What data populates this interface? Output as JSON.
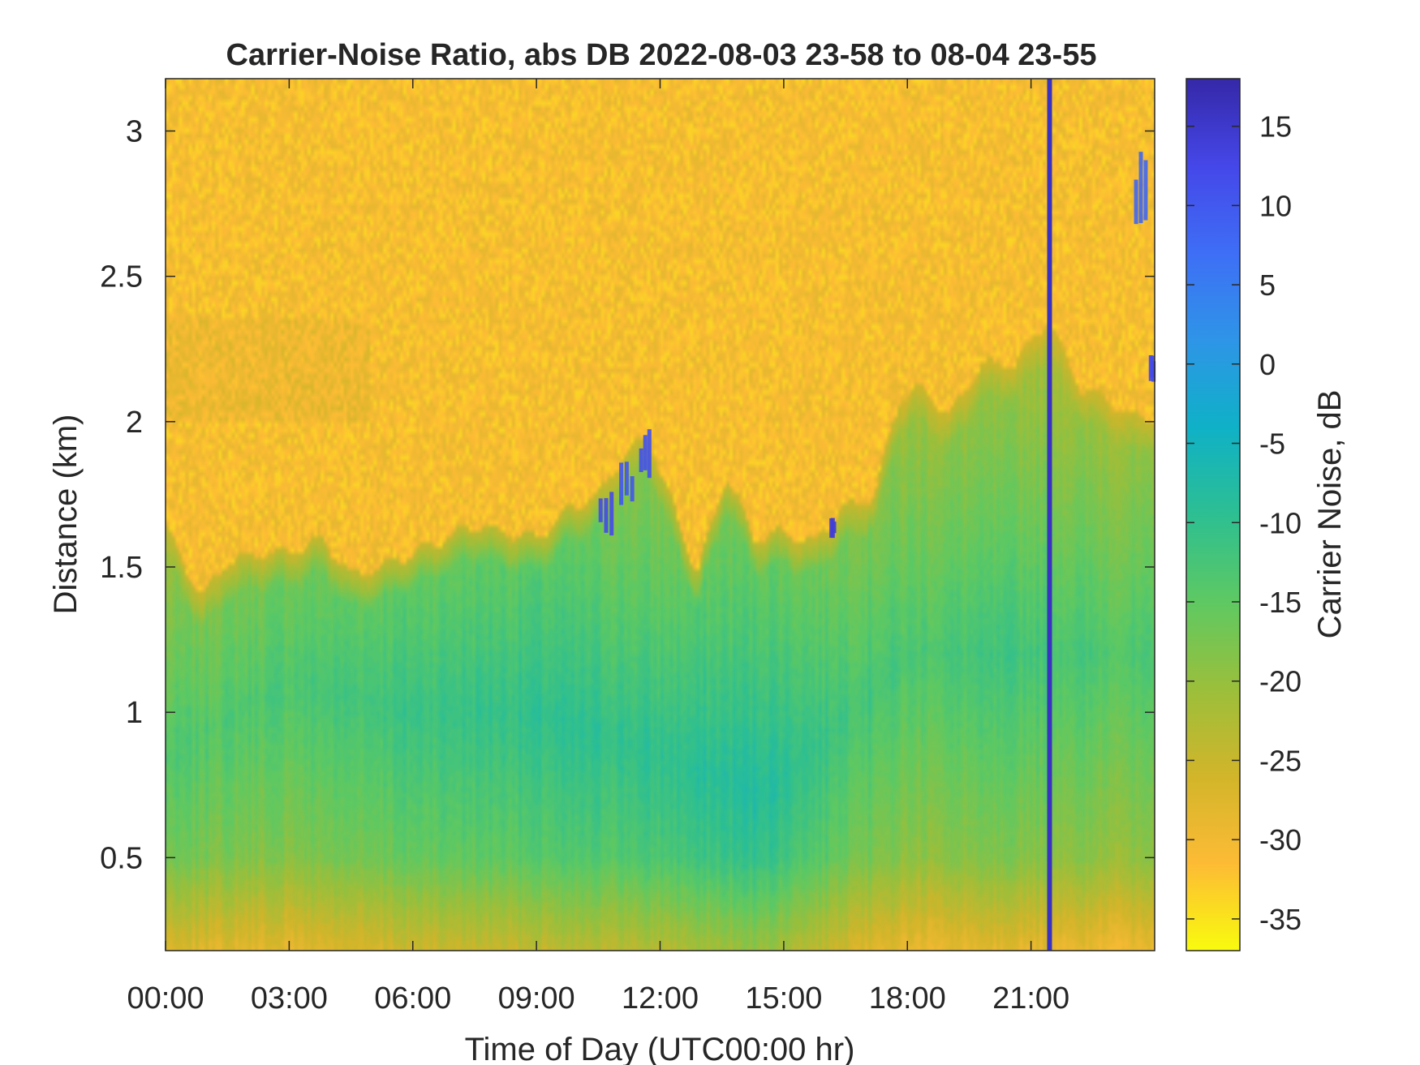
{
  "chart_data": {
    "type": "heatmap",
    "title": "Carrier-Noise Ratio, abs DB 2022-08-03 23-58 to 08-04 23-55",
    "xlabel": "Time of Day (UTC00:00 hr)",
    "ylabel": "Distance (km)",
    "colorbar_label": "Carrier Noise, dB",
    "xlim_hours": [
      0,
      24
    ],
    "ylim_km": [
      0.18,
      3.18
    ],
    "clim_db": [
      -37,
      18
    ],
    "colormap": "parula (reversed: yellow = low, dark blue = high)",
    "colormap_stops": [
      "#f9fb0e",
      "#fdbb35",
      "#d2b52a",
      "#9bbf3b",
      "#5ec962",
      "#2dbf92",
      "#0fb1c7",
      "#2e95e7",
      "#3e6ef6",
      "#4547e8",
      "#3528a8"
    ],
    "x_ticks": [
      {
        "value": 0,
        "label": "00:00"
      },
      {
        "value": 3,
        "label": "03:00"
      },
      {
        "value": 6,
        "label": "06:00"
      },
      {
        "value": 9,
        "label": "09:00"
      },
      {
        "value": 12,
        "label": "12:00"
      },
      {
        "value": 15,
        "label": "15:00"
      },
      {
        "value": 18,
        "label": "18:00"
      },
      {
        "value": 21,
        "label": "21:00"
      }
    ],
    "y_ticks": [
      {
        "value": 0.5,
        "label": "0.5"
      },
      {
        "value": 1,
        "label": "1"
      },
      {
        "value": 1.5,
        "label": "1.5"
      },
      {
        "value": 2,
        "label": "2"
      },
      {
        "value": 2.5,
        "label": "2.5"
      },
      {
        "value": 3,
        "label": "3"
      }
    ],
    "colorbar_ticks": [
      {
        "value": 15,
        "label": "15"
      },
      {
        "value": 10,
        "label": "10"
      },
      {
        "value": 5,
        "label": "5"
      },
      {
        "value": 0,
        "label": "0"
      },
      {
        "value": -5,
        "label": "-5"
      },
      {
        "value": -10,
        "label": "-10"
      },
      {
        "value": -15,
        "label": "-15"
      },
      {
        "value": -20,
        "label": "-20"
      },
      {
        "value": -25,
        "label": "-25"
      },
      {
        "value": -30,
        "label": "-30"
      },
      {
        "value": -35,
        "label": "-35"
      }
    ],
    "noise_floor_db": -31,
    "signal_boundary_km": [
      [
        0.0,
        1.65
      ],
      [
        0.3,
        1.55
      ],
      [
        0.9,
        1.4
      ],
      [
        1.5,
        1.52
      ],
      [
        2.3,
        1.55
      ],
      [
        3.0,
        1.55
      ],
      [
        3.8,
        1.6
      ],
      [
        4.5,
        1.47
      ],
      [
        5.2,
        1.5
      ],
      [
        6.0,
        1.55
      ],
      [
        6.8,
        1.6
      ],
      [
        7.5,
        1.65
      ],
      [
        8.2,
        1.62
      ],
      [
        9.0,
        1.6
      ],
      [
        9.8,
        1.7
      ],
      [
        10.5,
        1.75
      ],
      [
        11.2,
        1.9
      ],
      [
        11.7,
        1.95
      ],
      [
        12.3,
        1.72
      ],
      [
        12.9,
        1.48
      ],
      [
        13.6,
        1.82
      ],
      [
        14.3,
        1.6
      ],
      [
        15.0,
        1.62
      ],
      [
        15.7,
        1.58
      ],
      [
        16.4,
        1.7
      ],
      [
        17.2,
        1.75
      ],
      [
        17.8,
        2.08
      ],
      [
        18.3,
        2.12
      ],
      [
        19.0,
        2.02
      ],
      [
        19.8,
        2.2
      ],
      [
        20.6,
        2.2
      ],
      [
        21.4,
        2.35
      ],
      [
        22.2,
        2.12
      ],
      [
        22.8,
        2.08
      ],
      [
        23.4,
        2.02
      ],
      [
        24.0,
        2.02
      ]
    ],
    "signal_profile": [
      {
        "time_hr": 0,
        "peak_km": 0.85,
        "peak_db": -14
      },
      {
        "time_hr": 3,
        "peak_km": 1.1,
        "peak_db": -13
      },
      {
        "time_hr": 6,
        "peak_km": 1.0,
        "peak_db": -11
      },
      {
        "time_hr": 9,
        "peak_km": 1.0,
        "peak_db": -10
      },
      {
        "time_hr": 12,
        "peak_km": 0.85,
        "peak_db": -10
      },
      {
        "time_hr": 14.5,
        "peak_km": 0.72,
        "peak_db": -8
      },
      {
        "time_hr": 16,
        "peak_km": 0.9,
        "peak_db": -11
      },
      {
        "time_hr": 18,
        "peak_km": 1.2,
        "peak_db": -13
      },
      {
        "time_hr": 21,
        "peak_km": 1.2,
        "peak_db": -12
      },
      {
        "time_hr": 24,
        "peak_km": 1.2,
        "peak_db": -14
      }
    ],
    "high_value_features": [
      {
        "name": "vertical-line",
        "time_hr": 21.45,
        "km_range": [
          0.18,
          3.18
        ],
        "db": 16
      },
      {
        "name": "cloud-patch-1",
        "time_hr_range": [
          10.5,
          10.9
        ],
        "km_range": [
          1.6,
          1.8
        ],
        "db": 12
      },
      {
        "name": "cloud-patch-2",
        "time_hr_range": [
          11.0,
          11.4
        ],
        "km_range": [
          1.7,
          1.87
        ],
        "db": 10
      },
      {
        "name": "cloud-patch-3",
        "time_hr_range": [
          11.5,
          11.8
        ],
        "km_range": [
          1.78,
          1.98
        ],
        "db": 11
      },
      {
        "name": "cloud-patch-4",
        "time_hr_range": [
          16.15,
          16.25
        ],
        "km_range": [
          1.6,
          1.68
        ],
        "db": 14
      },
      {
        "name": "cloud-patch-5",
        "time_hr_range": [
          23.5,
          23.85
        ],
        "km_range": [
          2.6,
          2.95
        ],
        "db": 8
      },
      {
        "name": "cloud-patch-6",
        "time_hr_range": [
          23.9,
          24.0
        ],
        "km_range": [
          2.12,
          2.23
        ],
        "db": 12
      }
    ]
  }
}
